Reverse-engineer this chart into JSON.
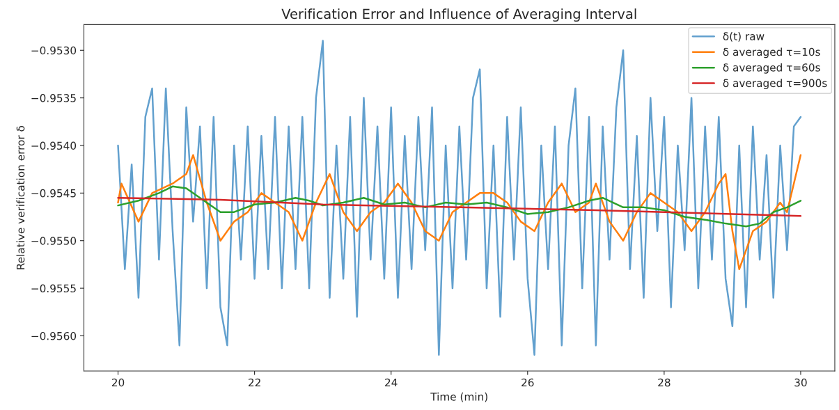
{
  "chart_data": {
    "type": "line",
    "title": "Verification Error and Influence of Averaging Interval",
    "xlabel": "Time (min)",
    "ylabel": "Relative verification error δ",
    "xlim": [
      19.5,
      30.5
    ],
    "xticks": [
      20,
      22,
      24,
      26,
      28,
      30
    ],
    "ylim": [
      -0.95637,
      -0.95273
    ],
    "yticks": [
      {
        "value": -0.956,
        "label": "−0.9560"
      },
      {
        "value": -0.9555,
        "label": "−0.9555"
      },
      {
        "value": -0.955,
        "label": "−0.9550"
      },
      {
        "value": -0.9545,
        "label": "−0.9545"
      },
      {
        "value": -0.954,
        "label": "−0.9540"
      },
      {
        "value": -0.9535,
        "label": "−0.9535"
      },
      {
        "value": -0.953,
        "label": "−0.9530"
      }
    ],
    "grid": false,
    "legend": "top right",
    "line_style": "solid",
    "marker": "none",
    "series": [
      {
        "name": "δ(t) raw",
        "color": "#62a0ce",
        "x": [
          20.0,
          20.1,
          20.2,
          20.3,
          20.4,
          20.5,
          20.6,
          20.7,
          20.8,
          20.9,
          21.0,
          21.1,
          21.2,
          21.3,
          21.4,
          21.5,
          21.6,
          21.7,
          21.8,
          21.9,
          22.0,
          22.1,
          22.2,
          22.3,
          22.4,
          22.5,
          22.6,
          22.7,
          22.8,
          22.9,
          23.0,
          23.1,
          23.2,
          23.3,
          23.4,
          23.5,
          23.6,
          23.7,
          23.8,
          23.9,
          24.0,
          24.1,
          24.2,
          24.3,
          24.4,
          24.5,
          24.6,
          24.7,
          24.8,
          24.9,
          25.0,
          25.1,
          25.2,
          25.3,
          25.4,
          25.5,
          25.6,
          25.7,
          25.8,
          25.9,
          26.0,
          26.1,
          26.2,
          26.3,
          26.4,
          26.5,
          26.6,
          26.7,
          26.8,
          26.9,
          27.0,
          27.1,
          27.2,
          27.3,
          27.4,
          27.5,
          27.6,
          27.7,
          27.8,
          27.9,
          28.0,
          28.1,
          28.2,
          28.3,
          28.4,
          28.5,
          28.6,
          28.7,
          28.8,
          28.9,
          29.0,
          29.1,
          29.2,
          29.3,
          29.4,
          29.5,
          29.6,
          29.7,
          29.8,
          29.9,
          30.0
        ],
        "values": [
          -0.954,
          -0.9553,
          -0.9542,
          -0.9556,
          -0.9537,
          -0.9534,
          -0.9552,
          -0.9534,
          -0.9549,
          -0.9561,
          -0.9536,
          -0.9548,
          -0.9538,
          -0.9555,
          -0.9537,
          -0.9557,
          -0.9561,
          -0.954,
          -0.9552,
          -0.9538,
          -0.9554,
          -0.9539,
          -0.9553,
          -0.9537,
          -0.9555,
          -0.9538,
          -0.9553,
          -0.9537,
          -0.9555,
          -0.9535,
          -0.9529,
          -0.9556,
          -0.954,
          -0.9554,
          -0.9537,
          -0.9558,
          -0.9535,
          -0.9552,
          -0.9538,
          -0.9554,
          -0.9536,
          -0.9556,
          -0.9539,
          -0.9553,
          -0.9537,
          -0.9551,
          -0.9536,
          -0.9562,
          -0.954,
          -0.9555,
          -0.9538,
          -0.9552,
          -0.9535,
          -0.9532,
          -0.9555,
          -0.954,
          -0.9558,
          -0.9537,
          -0.9552,
          -0.9536,
          -0.9554,
          -0.9562,
          -0.954,
          -0.9553,
          -0.9538,
          -0.9561,
          -0.954,
          -0.9534,
          -0.9555,
          -0.9537,
          -0.9561,
          -0.9538,
          -0.9552,
          -0.9536,
          -0.953,
          -0.9553,
          -0.9539,
          -0.9556,
          -0.9535,
          -0.9549,
          -0.9537,
          -0.9557,
          -0.954,
          -0.9551,
          -0.9535,
          -0.9555,
          -0.9538,
          -0.9552,
          -0.9537,
          -0.9554,
          -0.9559,
          -0.954,
          -0.9557,
          -0.9538,
          -0.9552,
          -0.9541,
          -0.9556,
          -0.954,
          -0.9551,
          -0.9538,
          -0.9537
        ]
      },
      {
        "name": "δ averaged τ=10s",
        "color": "#ff7f0e",
        "x": [
          20.0,
          20.05,
          20.3,
          20.5,
          20.8,
          21.0,
          21.1,
          21.3,
          21.5,
          21.7,
          21.9,
          22.1,
          22.3,
          22.5,
          22.7,
          22.9,
          23.1,
          23.3,
          23.5,
          23.7,
          23.9,
          24.1,
          24.3,
          24.5,
          24.7,
          24.9,
          25.1,
          25.3,
          25.5,
          25.7,
          25.9,
          26.1,
          26.3,
          26.5,
          26.7,
          26.9,
          27.0,
          27.2,
          27.4,
          27.6,
          27.8,
          28.0,
          28.2,
          28.4,
          28.6,
          28.8,
          28.9,
          29.0,
          29.1,
          29.3,
          29.5,
          29.7,
          29.8,
          29.9,
          30.0
        ],
        "values": [
          -0.9546,
          -0.9544,
          -0.9548,
          -0.9545,
          -0.9544,
          -0.9543,
          -0.9541,
          -0.9546,
          -0.955,
          -0.9548,
          -0.9547,
          -0.9545,
          -0.9546,
          -0.9547,
          -0.955,
          -0.9546,
          -0.9543,
          -0.9547,
          -0.9549,
          -0.9547,
          -0.9546,
          -0.9544,
          -0.9546,
          -0.9549,
          -0.955,
          -0.9547,
          -0.9546,
          -0.9545,
          -0.9545,
          -0.9546,
          -0.9548,
          -0.9549,
          -0.9546,
          -0.9544,
          -0.9547,
          -0.9546,
          -0.9544,
          -0.9548,
          -0.955,
          -0.9547,
          -0.9545,
          -0.9546,
          -0.9547,
          -0.9549,
          -0.9547,
          -0.9544,
          -0.9543,
          -0.9549,
          -0.9553,
          -0.9549,
          -0.9548,
          -0.9546,
          -0.9547,
          -0.9544,
          -0.9541
        ]
      },
      {
        "name": "δ averaged τ=60s",
        "color": "#2ca02c",
        "x": [
          20.0,
          20.3,
          20.6,
          20.8,
          21.0,
          21.2,
          21.5,
          21.7,
          22.0,
          22.3,
          22.6,
          22.8,
          23.0,
          23.3,
          23.6,
          23.9,
          24.2,
          24.5,
          24.8,
          25.1,
          25.4,
          25.7,
          26.0,
          26.3,
          26.6,
          26.9,
          27.1,
          27.4,
          27.7,
          28.0,
          28.3,
          28.6,
          28.9,
          29.2,
          29.4,
          29.6,
          29.8,
          30.0
        ],
        "values": [
          -0.95463,
          -0.95458,
          -0.9545,
          -0.95443,
          -0.95445,
          -0.95455,
          -0.9547,
          -0.9547,
          -0.95462,
          -0.9546,
          -0.95455,
          -0.95458,
          -0.95463,
          -0.9546,
          -0.95455,
          -0.95462,
          -0.9546,
          -0.95465,
          -0.9546,
          -0.95462,
          -0.9546,
          -0.95465,
          -0.95472,
          -0.9547,
          -0.95465,
          -0.95458,
          -0.95455,
          -0.95465,
          -0.95465,
          -0.95468,
          -0.95475,
          -0.95478,
          -0.95482,
          -0.95485,
          -0.95482,
          -0.9547,
          -0.95465,
          -0.95458
        ]
      },
      {
        "name": "δ averaged τ=900s",
        "color": "#d62728",
        "x": [
          20.0,
          21.5,
          23.0,
          25.0,
          27.0,
          30.0
        ],
        "values": [
          -0.95455,
          -0.95457,
          -0.95462,
          -0.95465,
          -0.95468,
          -0.95474
        ]
      }
    ]
  }
}
